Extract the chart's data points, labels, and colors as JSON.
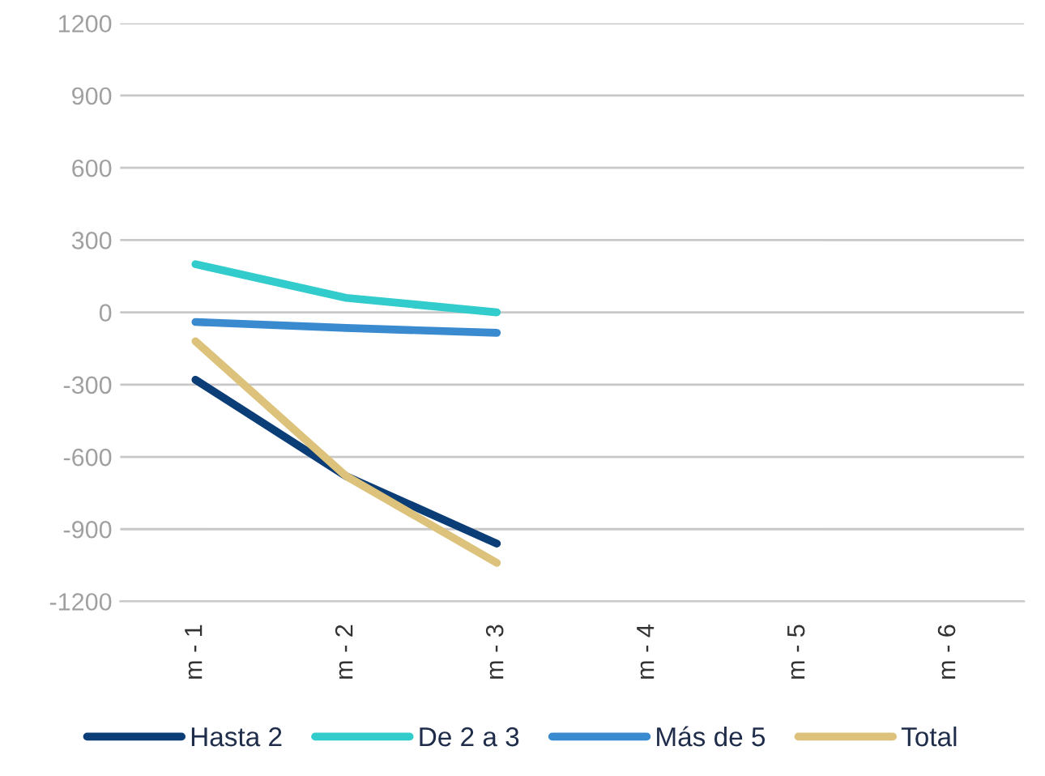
{
  "chart_data": {
    "type": "line",
    "categories": [
      "m - 1",
      "m - 2",
      "m - 3",
      "m - 4",
      "m - 5",
      "m - 6"
    ],
    "series": [
      {
        "name": "Hasta 2",
        "color": "#0b3d77",
        "values": [
          -280,
          -680,
          -960,
          null,
          null,
          null
        ]
      },
      {
        "name": "De 2 a 3",
        "color": "#33cccc",
        "values": [
          200,
          60,
          0,
          null,
          null,
          null
        ]
      },
      {
        "name": "Más de 5",
        "color": "#3a8ad0",
        "values": [
          -40,
          -65,
          -85,
          null,
          null,
          null
        ]
      },
      {
        "name": "Total",
        "color": "#dcc27a",
        "values": [
          -120,
          -680,
          -1040,
          null,
          null,
          null
        ]
      }
    ],
    "ylim": [
      -1200,
      1200
    ],
    "yticks": [
      -1200,
      -900,
      -600,
      -300,
      0,
      300,
      600,
      900,
      1200
    ],
    "grid": "y",
    "legend": "bottom",
    "marker": "none",
    "line_style": "solid"
  }
}
